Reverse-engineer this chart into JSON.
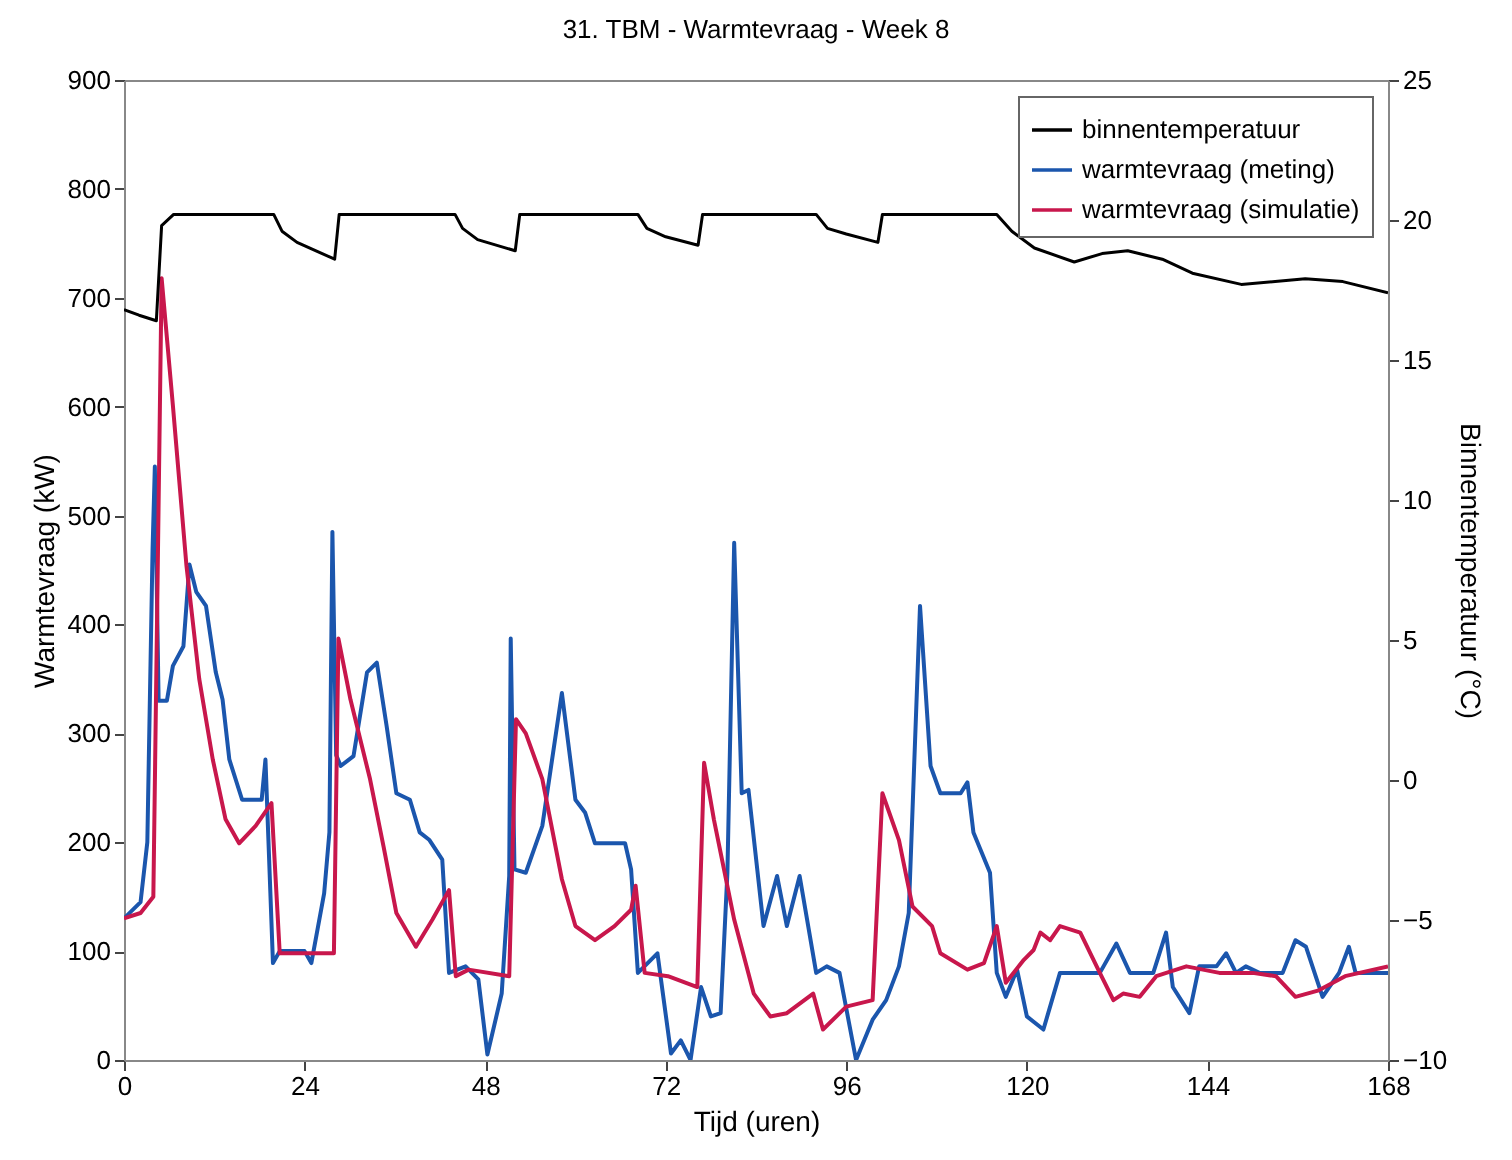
{
  "chart_data": {
    "type": "line",
    "title": "31. TBM - Warmtevraag - Week 8",
    "xlabel": "Tijd (uren)",
    "ylabel": "Warmtevraag (kW)",
    "y2label": "Binnentemperatuur (°C)",
    "xlim": [
      0,
      168
    ],
    "xticks": [
      0,
      24,
      48,
      72,
      96,
      120,
      144,
      168
    ],
    "ylim": [
      0,
      900
    ],
    "yticks": [
      0,
      100,
      200,
      300,
      400,
      500,
      600,
      700,
      800,
      900
    ],
    "y2lim": [
      -10,
      25
    ],
    "y2ticks": [
      -10,
      -5,
      0,
      5,
      10,
      15,
      20,
      25
    ],
    "legend": "top right",
    "grid": false,
    "line_style": "solid",
    "series": [
      {
        "name": "binnentemperatuur",
        "color": "#000000",
        "axis": "y2",
        "x": [
          0,
          2,
          4.3,
          5,
          6.6,
          8,
          19.9,
          21,
          23,
          28,
          28.6,
          30,
          44,
          45,
          47,
          52,
          52.6,
          54,
          68.3,
          69.5,
          72,
          76.3,
          76.9,
          78,
          92,
          93.5,
          96,
          100.2,
          100.8,
          102,
          116,
          118,
          121,
          126.3,
          130,
          133.4,
          138,
          142,
          148.5,
          153,
          157,
          162,
          168
        ],
        "values": [
          16.8,
          16.6,
          16.4,
          19.8,
          20.2,
          20.2,
          20.2,
          19.6,
          19.2,
          18.6,
          20.2,
          20.2,
          20.2,
          19.7,
          19.3,
          18.9,
          20.2,
          20.2,
          20.2,
          19.7,
          19.4,
          19.1,
          20.2,
          20.2,
          20.2,
          19.7,
          19.5,
          19.2,
          20.2,
          20.2,
          20.2,
          19.6,
          19.0,
          18.5,
          18.8,
          18.9,
          18.6,
          18.1,
          17.7,
          17.8,
          17.9,
          17.8,
          17.4
        ]
      },
      {
        "name": "warmtevraag (meting)",
        "color": "#1b56ad",
        "x": [
          0,
          2.2,
          3.1,
          3.8,
          4.1,
          4.6,
          5.7,
          6.5,
          7.9,
          8.7,
          9.6,
          10.9,
          12.2,
          13.1,
          14.0,
          15.7,
          18.3,
          18.8,
          19.8,
          20.7,
          24.0,
          24.9,
          26.6,
          27.3,
          27.7,
          28.2,
          28.8,
          30.5,
          32.3,
          33.6,
          34.9,
          36.2,
          38.0,
          39.3,
          40.6,
          42.3,
          43.2,
          45.4,
          47.1,
          48.3,
          50.2,
          51.2,
          51.4,
          51.9,
          53.4,
          55.6,
          58.2,
          60.0,
          61.3,
          62.6,
          66.6,
          67.4,
          68.3,
          70.9,
          72.7,
          74.0,
          75.3,
          76.7,
          78.0,
          79.3,
          80.2,
          81.1,
          82.1,
          83.0,
          85.0,
          86.8,
          88.1,
          89.8,
          92.0,
          93.4,
          95.1,
          97.3,
          99.5,
          101.3,
          103.0,
          104.3,
          105.8,
          107.2,
          108.5,
          111.2,
          112.1,
          112.9,
          115.1,
          116.0,
          117.2,
          118.7,
          120.0,
          122.2,
          124.4,
          129.7,
          131.9,
          133.7,
          136.8,
          138.5,
          139.4,
          141.6,
          142.9,
          145.2,
          146.5,
          147.8,
          149.1,
          150.9,
          154.0,
          155.7,
          157.1,
          159.3,
          161.5,
          162.8,
          163.7,
          168
        ],
        "values": [
          130,
          145,
          200,
          470,
          545,
          330,
          330,
          362,
          380,
          455,
          430,
          417,
          356,
          331,
          276,
          239,
          239,
          276,
          89,
          100,
          100,
          89,
          153,
          209,
          485,
          280,
          270,
          279,
          356,
          365,
          307,
          245,
          239,
          209,
          202,
          184,
          80,
          86,
          74,
          5,
          61,
          169,
          387,
          175,
          172,
          215,
          337,
          239,
          227,
          199,
          199,
          175,
          80,
          98,
          6,
          18,
          0,
          67,
          40,
          43,
          172,
          475,
          245,
          248,
          123,
          169,
          123,
          169,
          80,
          86,
          80,
          0,
          37,
          55,
          86,
          135,
          417,
          270,
          245,
          245,
          255,
          209,
          172,
          80,
          58,
          83,
          40,
          28,
          80,
          80,
          107,
          80,
          80,
          117,
          67,
          43,
          86,
          86,
          98,
          80,
          86,
          80,
          80,
          110,
          104,
          58,
          80,
          104,
          80,
          80
        ]
      },
      {
        "name": "warmtevraag (simulatie)",
        "color": "#c8174c",
        "x": [
          0,
          2.2,
          3.9,
          5.0,
          6.5,
          8.3,
          10.0,
          11.8,
          13.5,
          15.3,
          17.5,
          19.6,
          20.7,
          22.3,
          27.9,
          28.5,
          30.1,
          32.7,
          34.5,
          36.2,
          38.8,
          41.0,
          43.2,
          44.1,
          45.8,
          51.2,
          52.1,
          53.4,
          55.6,
          58.2,
          60.0,
          62.6,
          65.2,
          67.4,
          68.0,
          69.2,
          72.3,
          76.2,
          77.1,
          78.4,
          81.1,
          83.7,
          85.9,
          88.1,
          91.6,
          92.9,
          96.0,
          99.5,
          100.8,
          103.0,
          104.8,
          107.4,
          108.5,
          112.1,
          114.3,
          116.0,
          117.2,
          119.6,
          120.9,
          121.8,
          123.1,
          124.4,
          127.1,
          129.7,
          131.5,
          132.8,
          135.0,
          137.2,
          141.2,
          145.6,
          150.0,
          153.1,
          155.7,
          158.8,
          162.3,
          168
        ],
        "values": [
          130,
          135,
          150,
          718,
          601,
          454,
          350,
          276,
          221,
          199,
          215,
          236,
          98,
          98,
          98,
          387,
          331,
          258,
          196,
          135,
          104,
          129,
          156,
          77,
          83,
          77,
          313,
          300,
          258,
          166,
          123,
          110,
          123,
          138,
          160,
          80,
          77,
          67,
          273,
          221,
          129,
          61,
          40,
          43,
          61,
          28,
          49,
          55,
          245,
          202,
          141,
          123,
          98,
          83,
          89,
          123,
          71,
          92,
          101,
          117,
          110,
          123,
          117,
          80,
          55,
          61,
          58,
          77,
          86,
          80,
          80,
          77,
          58,
          64,
          77,
          86
        ]
      }
    ]
  }
}
